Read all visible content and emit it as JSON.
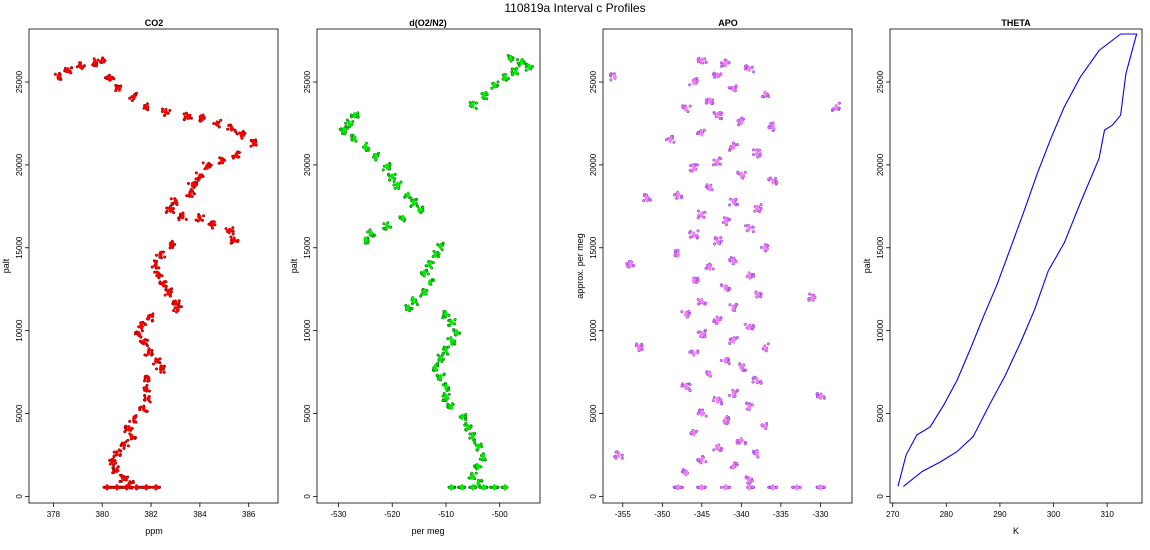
{
  "figure_title": "110819a   Interval c Profiles",
  "chart_data": [
    {
      "type": "scatter",
      "title": "CO2",
      "xlabel": "ppm",
      "ylabel": "palt",
      "xlim": [
        377,
        387.2
      ],
      "ylim": [
        -400,
        28200
      ],
      "xticks": [
        378,
        380,
        382,
        384,
        386
      ],
      "yticks": [
        0,
        5000,
        10000,
        15000,
        20000,
        25000
      ],
      "color": "#ff0000",
      "edge_color": "#8b0000",
      "series": [
        {
          "points": [
            [
              378.2,
              25300
            ],
            [
              378.6,
              25700
            ],
            [
              379.1,
              26000
            ],
            [
              379.7,
              26200
            ],
            [
              380.0,
              26300
            ],
            [
              380.3,
              25200
            ],
            [
              380.7,
              24600
            ],
            [
              381.3,
              24100
            ],
            [
              381.8,
              23500
            ],
            [
              382.6,
              23200
            ],
            [
              383.5,
              22900
            ],
            [
              384.1,
              22800
            ],
            [
              384.7,
              22500
            ],
            [
              385.3,
              22200
            ],
            [
              385.7,
              21800
            ],
            [
              386.2,
              21300
            ],
            [
              385.5,
              20600
            ],
            [
              384.9,
              20300
            ],
            [
              384.3,
              19900
            ],
            [
              384.0,
              19300
            ],
            [
              383.7,
              18800
            ],
            [
              383.6,
              18300
            ],
            [
              383.0,
              17800
            ],
            [
              382.8,
              17300
            ],
            [
              383.3,
              16900
            ],
            [
              384.0,
              16800
            ],
            [
              384.5,
              16400
            ],
            [
              385.2,
              16000
            ],
            [
              385.4,
              15500
            ],
            [
              382.8,
              15200
            ],
            [
              382.4,
              14600
            ],
            [
              382.2,
              14000
            ],
            [
              382.3,
              13400
            ],
            [
              382.5,
              12800
            ],
            [
              382.7,
              12300
            ],
            [
              383.0,
              11700
            ],
            [
              383.1,
              11300
            ],
            [
              381.9,
              10800
            ],
            [
              381.6,
              10300
            ],
            [
              381.5,
              9800
            ],
            [
              381.7,
              9300
            ],
            [
              381.9,
              8700
            ],
            [
              382.2,
              8200
            ],
            [
              382.4,
              7700
            ],
            [
              381.9,
              7100
            ],
            [
              381.8,
              6500
            ],
            [
              381.9,
              5900
            ],
            [
              381.7,
              5300
            ],
            [
              381.3,
              4700
            ],
            [
              381.1,
              4100
            ],
            [
              381.2,
              3600
            ],
            [
              380.9,
              3100
            ],
            [
              380.6,
              2600
            ],
            [
              380.4,
              2100
            ],
            [
              380.6,
              1600
            ],
            [
              380.9,
              1100
            ],
            [
              381.1,
              700
            ],
            [
              380.2,
              550
            ],
            [
              380.6,
              550
            ],
            [
              381.0,
              550
            ],
            [
              381.4,
              550
            ],
            [
              381.8,
              550
            ],
            [
              382.2,
              550
            ]
          ]
        }
      ]
    },
    {
      "type": "scatter",
      "title": "d(O2/N2)",
      "xlabel": "per meg",
      "ylabel": "palt",
      "xlim": [
        -534,
        -492.5
      ],
      "ylim": [
        -400,
        28200
      ],
      "xticks": [
        -530,
        -520,
        -510,
        -500
      ],
      "yticks": [
        0,
        5000,
        10000,
        15000,
        20000,
        25000
      ],
      "color": "#00ee00",
      "edge_color": "#006400",
      "series": [
        {
          "points": [
            [
              -498,
              26400
            ],
            [
              -496,
              26200
            ],
            [
              -494.5,
              25900
            ],
            [
              -497,
              25600
            ],
            [
              -499,
              25300
            ],
            [
              -501,
              24800
            ],
            [
              -503,
              24200
            ],
            [
              -505,
              23600
            ],
            [
              -527,
              23000
            ],
            [
              -528,
              22500
            ],
            [
              -529,
              22100
            ],
            [
              -527,
              21600
            ],
            [
              -525,
              21100
            ],
            [
              -523,
              20500
            ],
            [
              -521,
              19900
            ],
            [
              -520,
              19300
            ],
            [
              -519,
              18800
            ],
            [
              -517,
              18200
            ],
            [
              -516,
              17700
            ],
            [
              -515,
              17300
            ],
            [
              -518,
              16800
            ],
            [
              -521,
              16300
            ],
            [
              -524,
              15900
            ],
            [
              -525,
              15500
            ],
            [
              -511,
              15100
            ],
            [
              -512,
              14600
            ],
            [
              -513,
              14000
            ],
            [
              -514,
              13500
            ],
            [
              -513,
              12900
            ],
            [
              -514,
              12300
            ],
            [
              -516,
              11800
            ],
            [
              -517,
              11400
            ],
            [
              -510,
              11000
            ],
            [
              -509,
              10500
            ],
            [
              -508,
              9900
            ],
            [
              -509,
              9400
            ],
            [
              -510,
              8800
            ],
            [
              -511,
              8300
            ],
            [
              -512,
              7800
            ],
            [
              -511,
              7200
            ],
            [
              -510,
              6600
            ],
            [
              -510,
              6000
            ],
            [
              -509,
              5400
            ],
            [
              -507,
              4800
            ],
            [
              -506,
              4200
            ],
            [
              -505,
              3600
            ],
            [
              -504,
              3000
            ],
            [
              -503,
              2400
            ],
            [
              -504,
              1800
            ],
            [
              -505,
              1200
            ],
            [
              -504,
              800
            ],
            [
              -509,
              550
            ],
            [
              -507,
              550
            ],
            [
              -505,
              550
            ],
            [
              -503,
              550
            ],
            [
              -501,
              550
            ],
            [
              -499,
              550
            ]
          ]
        }
      ]
    },
    {
      "type": "scatter",
      "title": "APO",
      "xlabel": "",
      "ylabel": "approx. per meg",
      "xlim": [
        -357.5,
        -326
      ],
      "ylim": [
        -400,
        28200
      ],
      "xticks": [
        -355,
        -350,
        -345,
        -340,
        -335,
        -330
      ],
      "yticks": [
        0,
        5000,
        10000,
        15000,
        20000,
        25000
      ],
      "color": "#ee82ee",
      "edge_color": "#8a2be2",
      "series": [
        {
          "points": [
            [
              -345,
              26300
            ],
            [
              -342,
              26100
            ],
            [
              -339,
              25800
            ],
            [
              -343,
              25400
            ],
            [
              -346,
              25000
            ],
            [
              -341,
              24600
            ],
            [
              -337,
              24300
            ],
            [
              -344,
              23900
            ],
            [
              -347,
              23400
            ],
            [
              -343,
              23000
            ],
            [
              -340,
              22600
            ],
            [
              -336,
              22300
            ],
            [
              -345,
              21900
            ],
            [
              -349,
              21500
            ],
            [
              -341,
              21100
            ],
            [
              -338,
              20700
            ],
            [
              -343,
              20200
            ],
            [
              -346,
              19800
            ],
            [
              -340,
              19400
            ],
            [
              -336,
              19000
            ],
            [
              -344,
              18600
            ],
            [
              -348,
              18200
            ],
            [
              -341,
              17800
            ],
            [
              -338,
              17400
            ],
            [
              -345,
              17000
            ],
            [
              -342,
              16600
            ],
            [
              -339,
              16200
            ],
            [
              -346,
              15800
            ],
            [
              -343,
              15400
            ],
            [
              -337,
              15000
            ],
            [
              -348,
              14600
            ],
            [
              -341,
              14200
            ],
            [
              -344,
              13800
            ],
            [
              -339,
              13400
            ],
            [
              -346,
              13000
            ],
            [
              -342,
              12600
            ],
            [
              -338,
              12200
            ],
            [
              -345,
              11800
            ],
            [
              -341,
              11400
            ],
            [
              -347,
              11000
            ],
            [
              -343,
              10600
            ],
            [
              -339,
              10200
            ],
            [
              -345,
              9800
            ],
            [
              -341,
              9400
            ],
            [
              -337,
              9000
            ],
            [
              -346,
              8600
            ],
            [
              -342,
              8200
            ],
            [
              -340,
              7800
            ],
            [
              -344,
              7400
            ],
            [
              -338,
              7000
            ],
            [
              -347,
              6600
            ],
            [
              -341,
              6200
            ],
            [
              -343,
              5800
            ],
            [
              -339,
              5400
            ],
            [
              -345,
              5000
            ],
            [
              -342,
              4600
            ],
            [
              -337,
              4200
            ],
            [
              -346,
              3800
            ],
            [
              -340,
              3400
            ],
            [
              -343,
              3000
            ],
            [
              -338,
              2600
            ],
            [
              -345,
              2200
            ],
            [
              -341,
              1800
            ],
            [
              -347,
              1400
            ],
            [
              -339,
              1000
            ],
            [
              -348,
              550
            ],
            [
              -345,
              550
            ],
            [
              -342,
              550
            ],
            [
              -339,
              550
            ],
            [
              -336,
              550
            ],
            [
              -333,
              550
            ],
            [
              -330,
              550
            ],
            [
              -356,
              25300
            ],
            [
              -355.5,
              2500
            ],
            [
              -328,
              23500
            ],
            [
              -352,
              18000
            ],
            [
              -331,
              12000
            ],
            [
              -353,
              9000
            ],
            [
              -330,
              6000
            ],
            [
              -354,
              14000
            ]
          ]
        }
      ]
    },
    {
      "type": "line",
      "title": "THETA",
      "xlabel": "K",
      "ylabel": "palt",
      "xlim": [
        269.5,
        316.5
      ],
      "ylim": [
        -400,
        28200
      ],
      "xticks": [
        270,
        280,
        290,
        300,
        310
      ],
      "yticks": [
        0,
        5000,
        10000,
        15000,
        20000,
        25000
      ],
      "color": "#0000ff",
      "series": [
        {
          "points": [
            [
              271,
              600
            ],
            [
              272.5,
              2500
            ],
            [
              274.5,
              3700
            ],
            [
              277,
              4200
            ],
            [
              279.5,
              5500
            ],
            [
              282,
              7000
            ],
            [
              284.5,
              8900
            ],
            [
              287,
              10900
            ],
            [
              289.5,
              12800
            ],
            [
              292,
              15000
            ],
            [
              294.5,
              17200
            ],
            [
              297,
              19500
            ],
            [
              299.5,
              21600
            ],
            [
              302,
              23500
            ],
            [
              305,
              25300
            ],
            [
              308.5,
              26900
            ],
            [
              312.5,
              27900
            ],
            [
              315.5,
              27900
            ],
            [
              313.5,
              25500
            ],
            [
              312.5,
              23000
            ],
            [
              311,
              22400
            ],
            [
              309.5,
              22100
            ],
            [
              308.5,
              20400
            ],
            [
              305,
              17700
            ],
            [
              302,
              15300
            ],
            [
              299,
              13600
            ],
            [
              296.5,
              11300
            ],
            [
              294,
              9400
            ],
            [
              291,
              7300
            ],
            [
              288,
              5500
            ],
            [
              285,
              3600
            ],
            [
              282,
              2700
            ],
            [
              279,
              2100
            ],
            [
              275.5,
              1500
            ],
            [
              272,
              600
            ]
          ]
        }
      ]
    }
  ]
}
